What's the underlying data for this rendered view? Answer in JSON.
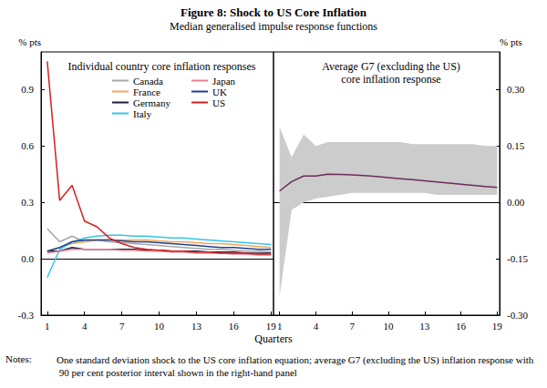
{
  "title": "Figure 8: Shock to US Core Inflation",
  "subtitle": "Median generalised impulse response functions",
  "xlabel": "Quarters",
  "notes_label": "Notes:",
  "notes": "One standard deviation shock to the US core inflation equation; average G7 (excluding the US) inflation response with 90 per cent posterior interval shown in the right-hand panel",
  "chart_data": [
    {
      "type": "line",
      "title": "Individual country core inflation responses",
      "ylabel": "% pts",
      "x": [
        1,
        2,
        3,
        4,
        5,
        6,
        7,
        8,
        9,
        10,
        11,
        12,
        13,
        14,
        15,
        16,
        17,
        18,
        19
      ],
      "xlim": [
        0.5,
        19.2
      ],
      "xticks": [
        1,
        4,
        7,
        10,
        13,
        16,
        19
      ],
      "ylim": [
        -0.3,
        1.1
      ],
      "yticks": [
        -0.3,
        {
          "value": 0,
          "label": "0.0"
        },
        0.3,
        0.6,
        0.9
      ],
      "grid": false,
      "legend": "top",
      "series": [
        {
          "name": "Canada",
          "color": "#a6a6a6",
          "values": [
            0.16,
            0.09,
            0.12,
            0.09,
            0.1,
            0.09,
            0.085,
            0.08,
            0.075,
            0.07,
            0.065,
            0.06,
            0.055,
            0.05,
            0.05,
            0.045,
            0.04,
            0.04,
            0.035
          ]
        },
        {
          "name": "France",
          "color": "#f4a55a",
          "values": [
            0.04,
            0.06,
            0.08,
            0.09,
            0.1,
            0.1,
            0.1,
            0.1,
            0.1,
            0.095,
            0.09,
            0.09,
            0.085,
            0.08,
            0.08,
            0.075,
            0.07,
            0.065,
            0.06
          ]
        },
        {
          "name": "Germany",
          "color": "#1c1c3c",
          "values": [
            0.04,
            0.04,
            0.06,
            0.05,
            0.05,
            0.05,
            0.05,
            0.05,
            0.045,
            0.045,
            0.04,
            0.04,
            0.04,
            0.035,
            0.035,
            0.035,
            0.03,
            0.03,
            0.03
          ]
        },
        {
          "name": "Italy",
          "color": "#33c6e8",
          "values": [
            -0.1,
            0.05,
            0.09,
            0.11,
            0.12,
            0.125,
            0.125,
            0.12,
            0.12,
            0.115,
            0.11,
            0.11,
            0.105,
            0.1,
            0.095,
            0.09,
            0.085,
            0.08,
            0.075
          ]
        },
        {
          "name": "Japan",
          "color": "#e8808f",
          "values": [
            0.03,
            0.04,
            0.05,
            0.05,
            0.05,
            0.05,
            0.045,
            0.045,
            0.04,
            0.04,
            0.035,
            0.035,
            0.03,
            0.03,
            0.03,
            0.025,
            0.025,
            0.02,
            0.02
          ]
        },
        {
          "name": "UK",
          "color": "#1f3f8f",
          "values": [
            0.04,
            0.06,
            0.09,
            0.1,
            0.1,
            0.1,
            0.095,
            0.09,
            0.09,
            0.085,
            0.08,
            0.075,
            0.07,
            0.065,
            0.06,
            0.06,
            0.055,
            0.05,
            0.05
          ]
        },
        {
          "name": "US",
          "color": "#d42020",
          "values": [
            1.05,
            0.31,
            0.39,
            0.2,
            0.17,
            0.11,
            0.08,
            0.06,
            0.05,
            0.045,
            0.04,
            0.04,
            0.035,
            0.035,
            0.03,
            0.03,
            0.03,
            0.025,
            0.025
          ]
        }
      ]
    },
    {
      "type": "line",
      "title": "Average G7 (excluding the US)\ncore inflation response",
      "ylabel": "% pts",
      "x": [
        1,
        2,
        3,
        4,
        5,
        6,
        7,
        8,
        9,
        10,
        11,
        12,
        13,
        14,
        15,
        16,
        17,
        18,
        19
      ],
      "xlim": [
        0.5,
        19.2
      ],
      "xticks": [
        1,
        4,
        7,
        10,
        13,
        16,
        19
      ],
      "ylim": [
        -0.3,
        0.4
      ],
      "yticks": [
        {
          "value": -0.3,
          "label": "-0.30"
        },
        -0.15,
        {
          "value": 0,
          "label": "0.00"
        },
        0.15,
        {
          "value": 0.3,
          "label": "0.30"
        }
      ],
      "grid": false,
      "color": "#6b2c5a",
      "values": [
        0.03,
        0.055,
        0.07,
        0.07,
        0.075,
        0.074,
        0.073,
        0.071,
        0.069,
        0.066,
        0.063,
        0.06,
        0.057,
        0.054,
        0.051,
        0.048,
        0.045,
        0.042,
        0.04
      ],
      "band_color": "#cccccc",
      "band_lower": [
        -0.25,
        -0.02,
        0.0,
        0.01,
        0.015,
        0.02,
        0.025,
        0.025,
        0.025,
        0.025,
        0.025,
        0.025,
        0.025,
        0.02,
        0.02,
        0.02,
        0.02,
        0.02,
        0.02
      ],
      "band_upper": [
        0.2,
        0.12,
        0.18,
        0.15,
        0.16,
        0.16,
        0.16,
        0.16,
        0.16,
        0.16,
        0.16,
        0.155,
        0.155,
        0.155,
        0.155,
        0.155,
        0.155,
        0.15,
        0.15
      ]
    }
  ]
}
